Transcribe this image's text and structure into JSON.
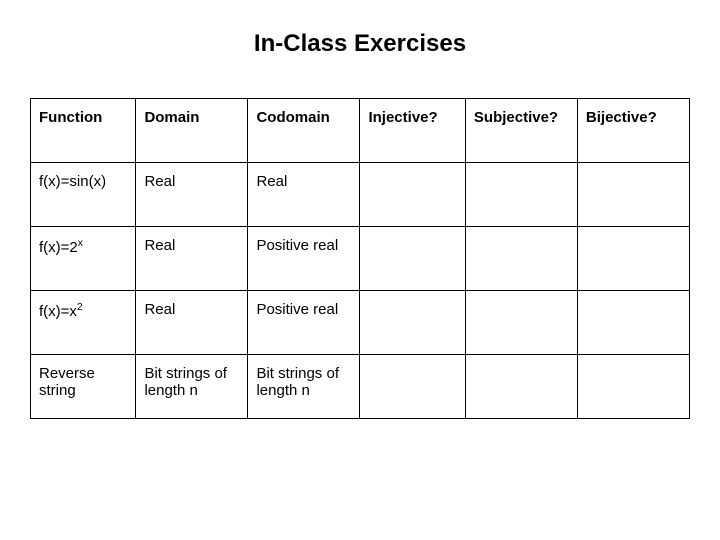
{
  "page": {
    "title": "In-Class Exercises",
    "background_color": "#ffffff",
    "text_color": "#000000",
    "title_fontsize": 24,
    "cell_fontsize": 15
  },
  "table": {
    "type": "table",
    "border_color": "#000000",
    "columns": [
      {
        "key": "function",
        "label": "Function"
      },
      {
        "key": "domain",
        "label": "Domain"
      },
      {
        "key": "codomain",
        "label": "Codomain"
      },
      {
        "key": "injective",
        "label": "Injective?"
      },
      {
        "key": "subjective",
        "label": "Subjective?"
      },
      {
        "key": "bijective",
        "label": "Bijective?"
      }
    ],
    "rows": [
      {
        "function": "f(x)=sin(x)",
        "domain": "Real",
        "codomain": "Real",
        "injective": "",
        "subjective": "",
        "bijective": ""
      },
      {
        "function_base": "f(x)=2",
        "function_sup": "x",
        "domain": "Real",
        "codomain": "Positive real",
        "injective": "",
        "subjective": "",
        "bijective": ""
      },
      {
        "function_base": "f(x)=x",
        "function_sup": "2",
        "domain": "Real",
        "codomain": "Positive real",
        "injective": "",
        "subjective": "",
        "bijective": ""
      },
      {
        "function": "Reverse string",
        "domain": "Bit strings of length n",
        "codomain": "Bit strings of length n",
        "injective": "",
        "subjective": "",
        "bijective": ""
      }
    ]
  }
}
